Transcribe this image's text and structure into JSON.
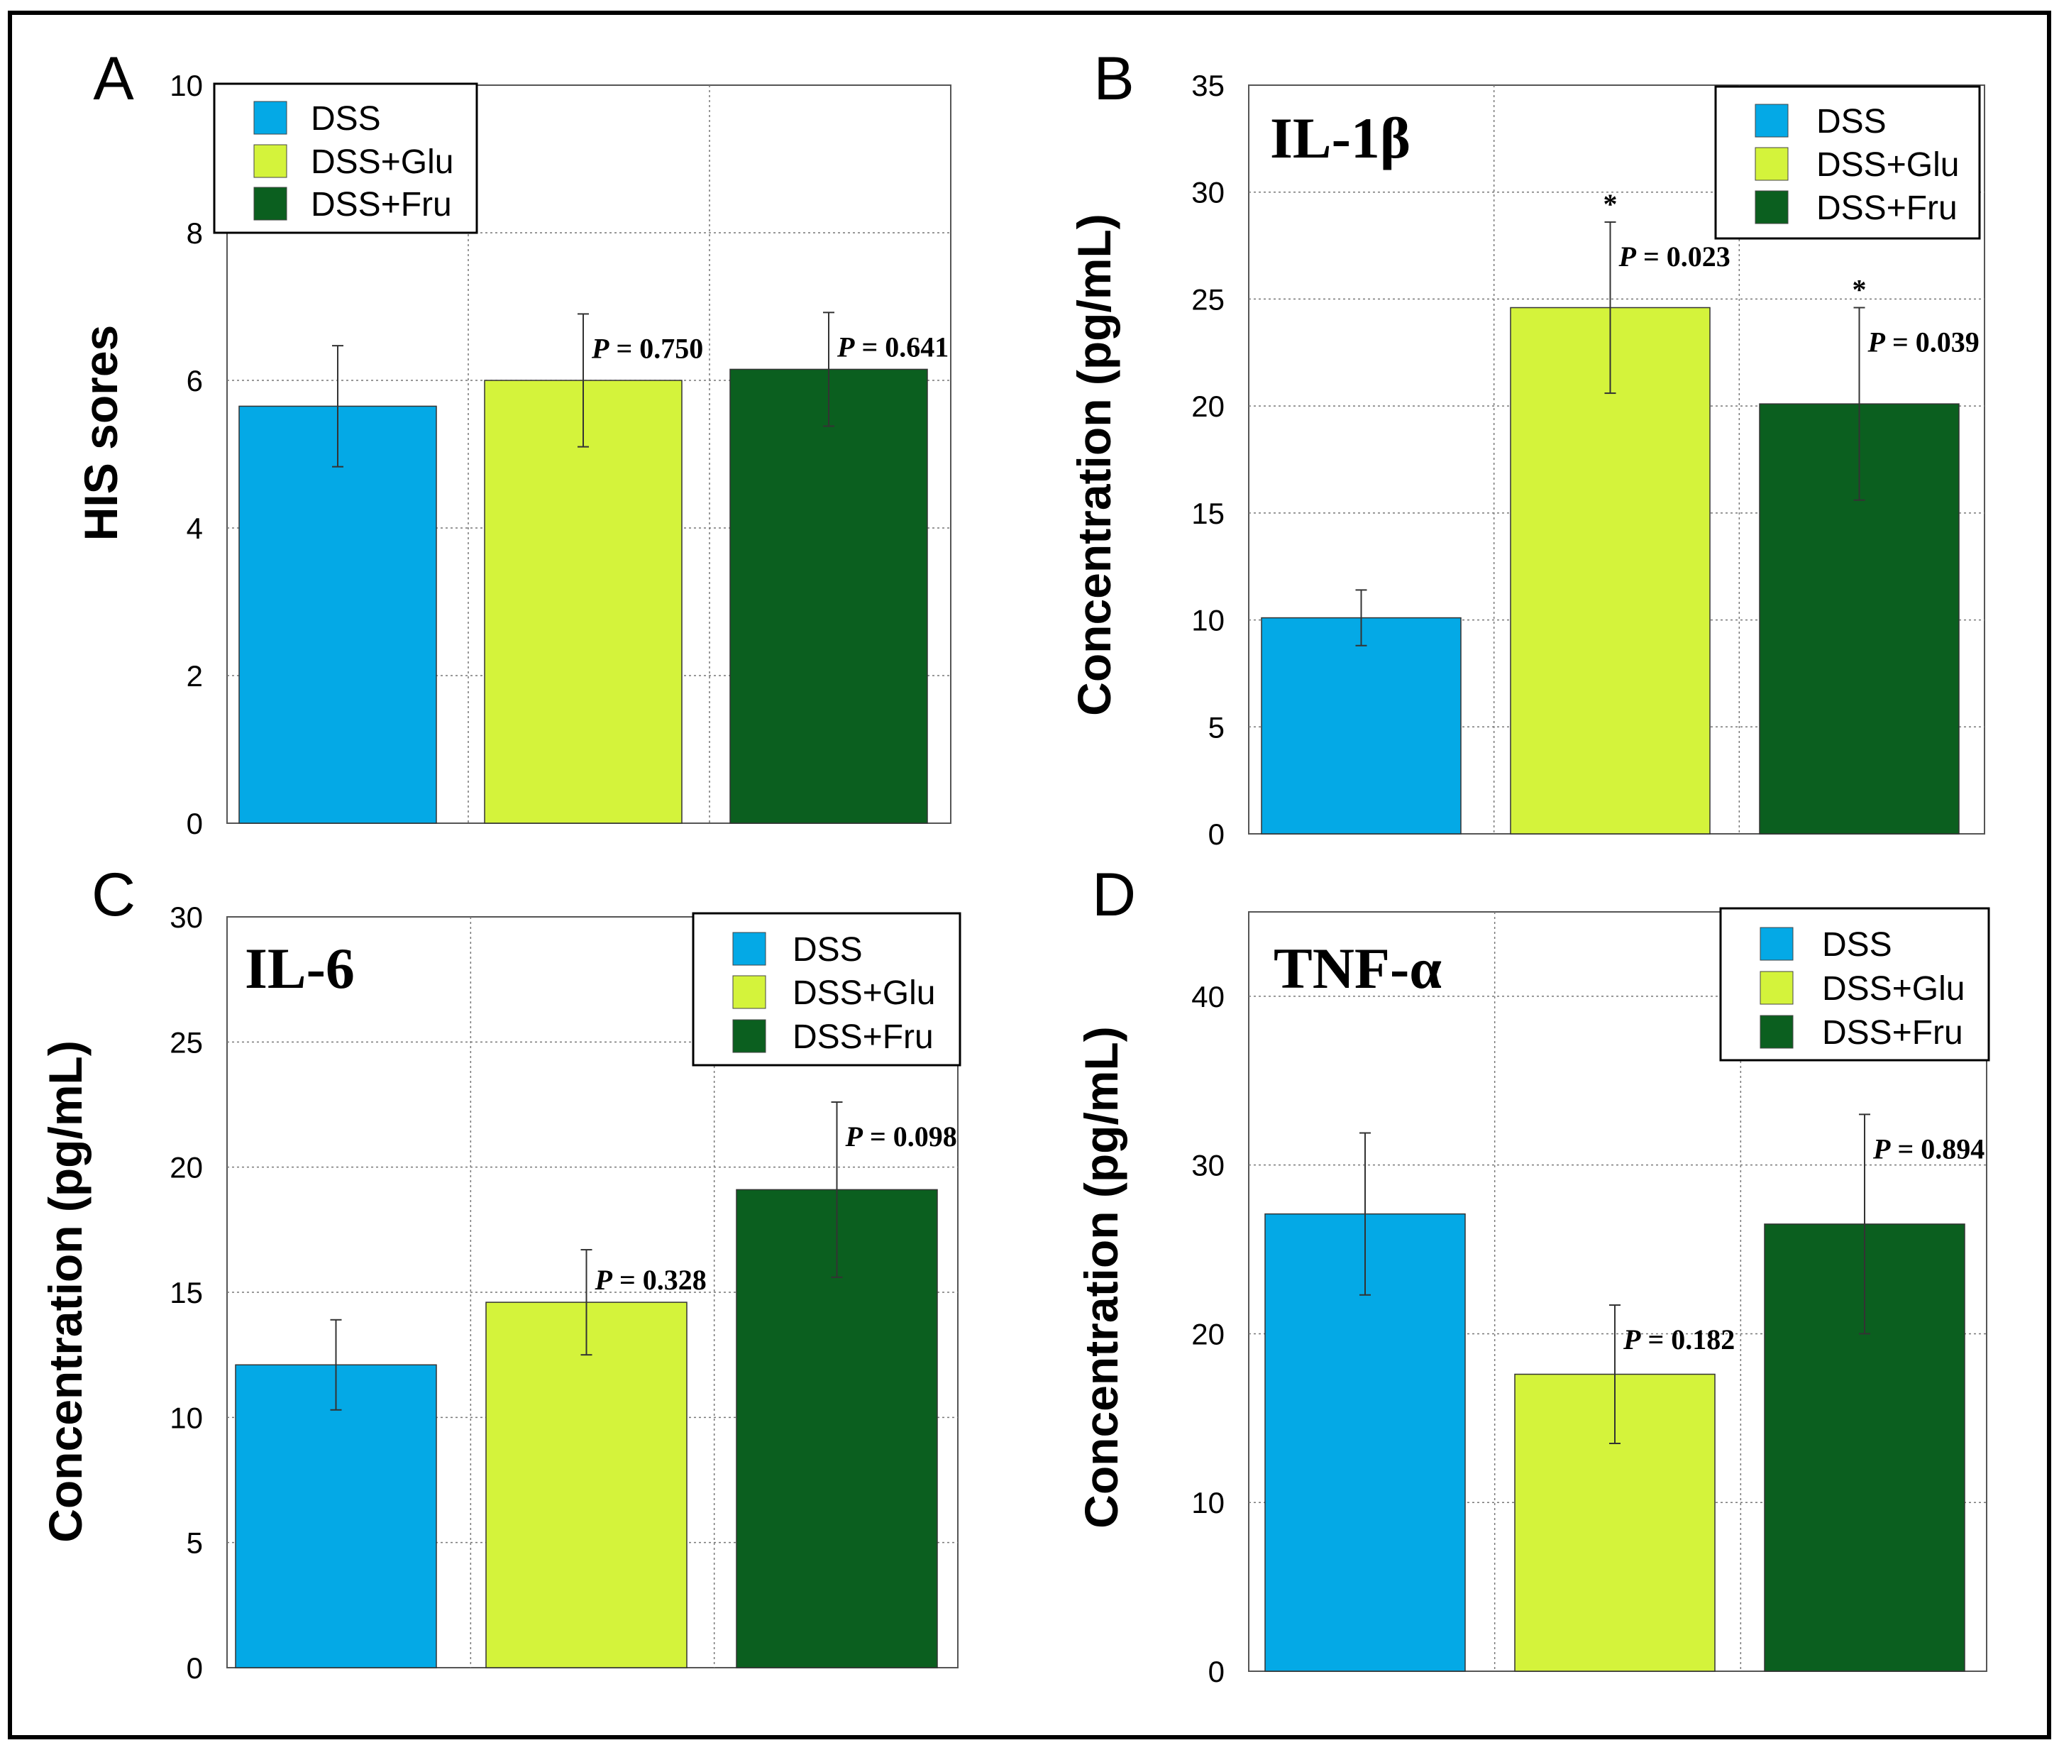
{
  "chart_data": [
    {
      "id": "A",
      "type": "bar",
      "panel_letter": "A",
      "title": "",
      "xlabel": "",
      "ylabel": "HIS sores",
      "ylim": [
        0,
        10
      ],
      "yticks": [
        0,
        2,
        4,
        6,
        8,
        10
      ],
      "ytick_labels": [
        "0",
        "2",
        "4",
        "6",
        "8",
        "10"
      ],
      "grid": true,
      "legend_position": "top-left",
      "categories": [
        "DSS",
        "DSS+Glu",
        "DSS+Fru"
      ],
      "values": [
        5.65,
        6.0,
        6.15
      ],
      "errors": [
        0.82,
        0.9,
        0.77
      ],
      "annotations": [
        {
          "bar": 1,
          "p_symbol": "P",
          "p_text": " = 0.750",
          "star": ""
        },
        {
          "bar": 2,
          "p_symbol": "P",
          "p_text": " = 0.641",
          "star": ""
        }
      ]
    },
    {
      "id": "B",
      "type": "bar",
      "panel_letter": "B",
      "title": "IL-1β",
      "xlabel": "",
      "ylabel": "Concentration (pg/mL)",
      "ylim": [
        0,
        35
      ],
      "yticks": [
        0,
        5,
        10,
        15,
        20,
        25,
        30,
        35
      ],
      "ytick_labels": [
        "0",
        "5",
        "10",
        "15",
        "20",
        "25",
        "30",
        "35"
      ],
      "grid": true,
      "legend_position": "top-right",
      "categories": [
        "DSS",
        "DSS+Glu",
        "DSS+Fru"
      ],
      "values": [
        10.1,
        24.6,
        20.1
      ],
      "errors": [
        1.3,
        4.0,
        4.5
      ],
      "annotations": [
        {
          "bar": 1,
          "p_symbol": "P",
          "p_text": " = 0.023",
          "star": "*"
        },
        {
          "bar": 2,
          "p_symbol": "P",
          "p_text": " = 0.039",
          "star": "*"
        }
      ]
    },
    {
      "id": "C",
      "type": "bar",
      "panel_letter": "C",
      "title": "IL-6",
      "xlabel": "",
      "ylabel": "Concentration (pg/mL)",
      "ylim": [
        0,
        30
      ],
      "yticks": [
        0,
        5,
        10,
        15,
        20,
        25,
        30
      ],
      "ytick_labels": [
        "0",
        "5",
        "10",
        "15",
        "20",
        "25",
        "30"
      ],
      "grid": true,
      "legend_position": "top-right",
      "categories": [
        "DSS",
        "DSS+Glu",
        "DSS+Fru"
      ],
      "values": [
        12.1,
        14.6,
        19.1
      ],
      "errors": [
        1.8,
        2.1,
        3.5
      ],
      "annotations": [
        {
          "bar": 1,
          "p_symbol": "P",
          "p_text": " = 0.328",
          "star": ""
        },
        {
          "bar": 2,
          "p_symbol": "P",
          "p_text": " = 0.098",
          "star": ""
        }
      ]
    },
    {
      "id": "D",
      "type": "bar",
      "panel_letter": "D",
      "title": "TNF-α",
      "xlabel": "",
      "ylabel": "Concentration (pg/mL)",
      "ylim": [
        0,
        45
      ],
      "yticks": [
        0,
        10,
        20,
        30,
        40
      ],
      "ytick_labels": [
        "0",
        "10",
        "20",
        "30",
        "40"
      ],
      "grid": true,
      "legend_position": "top-right",
      "categories": [
        "DSS",
        "DSS+Glu",
        "DSS+Fru"
      ],
      "values": [
        27.1,
        17.6,
        26.5
      ],
      "errors": [
        4.8,
        4.1,
        6.5
      ],
      "annotations": [
        {
          "bar": 1,
          "p_symbol": "P",
          "p_text": " = 0.182",
          "star": ""
        },
        {
          "bar": 2,
          "p_symbol": "P",
          "p_text": " = 0.894",
          "star": ""
        }
      ]
    }
  ],
  "series_colors": [
    "#04a9e6",
    "#d4f33b",
    "#0b5f1f"
  ],
  "frame_color": "#000000"
}
